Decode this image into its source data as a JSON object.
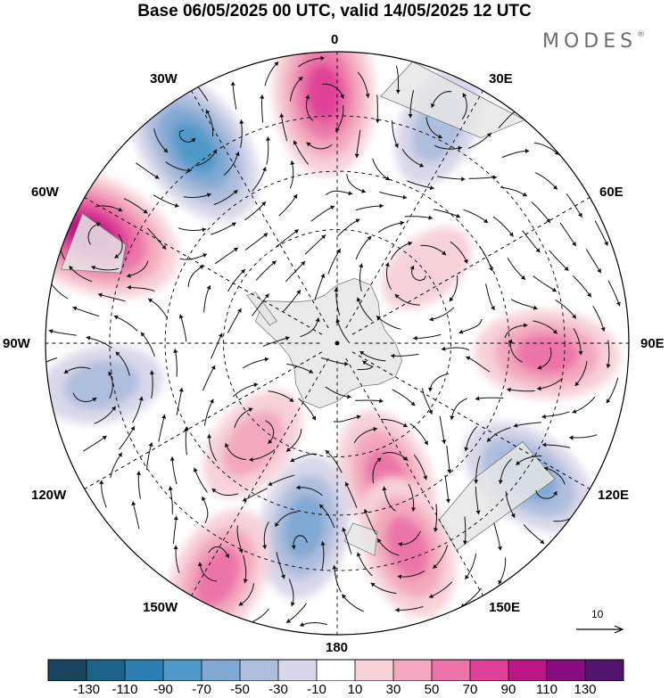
{
  "header": {
    "title": "Base 06/05/2025 00 UTC, valid 14/05/2025 12 UTC",
    "brand": "MODES",
    "brand_mark": "®"
  },
  "map": {
    "projection": "south-polar-stereographic",
    "longitude_labels": [
      "0",
      "30E",
      "60E",
      "90E",
      "120E",
      "150E",
      "180",
      "150W",
      "120W",
      "90W",
      "60W",
      "30W"
    ],
    "colors": {
      "land": "#e6e6e6",
      "coastline": "#7a7a7a",
      "gridline": "#000000",
      "streamline": "#111111"
    },
    "anomaly_features": [
      {
        "sign": "positive",
        "lon": -3,
        "r": 0.86,
        "peak": 90
      },
      {
        "sign": "negative",
        "lon": -36,
        "r": 0.83,
        "peak": -90
      },
      {
        "sign": "positive",
        "lon": -66,
        "r": 0.93,
        "peak": 110
      },
      {
        "sign": "negative",
        "lon": 25,
        "r": 0.82,
        "peak": -50
      },
      {
        "sign": "positive",
        "lon": 50,
        "r": 0.4,
        "peak": 30
      },
      {
        "sign": "positive",
        "lon": 93,
        "r": 0.72,
        "peak": 70
      },
      {
        "sign": "negative",
        "lon": 125,
        "r": 0.8,
        "peak": -70
      },
      {
        "sign": "positive",
        "lon": 160,
        "r": 0.5,
        "peak": 70
      },
      {
        "sign": "positive",
        "lon": 161,
        "r": 0.74,
        "peak": 70
      },
      {
        "sign": "negative",
        "lon": -170,
        "r": 0.64,
        "peak": -70
      },
      {
        "sign": "negative",
        "lon": -100,
        "r": 0.82,
        "peak": -50
      },
      {
        "sign": "positive",
        "lon": -140,
        "r": 0.45,
        "peak": 50
      },
      {
        "sign": "positive",
        "lon": -153,
        "r": 0.9,
        "peak": 70
      }
    ]
  },
  "reference_vector": {
    "label": "10",
    "value": 10
  },
  "colorbar": {
    "tick_labels": [
      "-130",
      "-110",
      "-90",
      "-70",
      "-50",
      "-30",
      "-10",
      "10",
      "30",
      "50",
      "70",
      "90",
      "110",
      "130"
    ],
    "colors": [
      "#17455f",
      "#1b6389",
      "#2b7fb3",
      "#4f99c8",
      "#80a9d3",
      "#aebedd",
      "#d9d8ea",
      "#ffffff",
      "#f7d2d8",
      "#f3a8bd",
      "#ec75a8",
      "#df4298",
      "#bb1688",
      "#8a0e80",
      "#531470"
    ]
  }
}
